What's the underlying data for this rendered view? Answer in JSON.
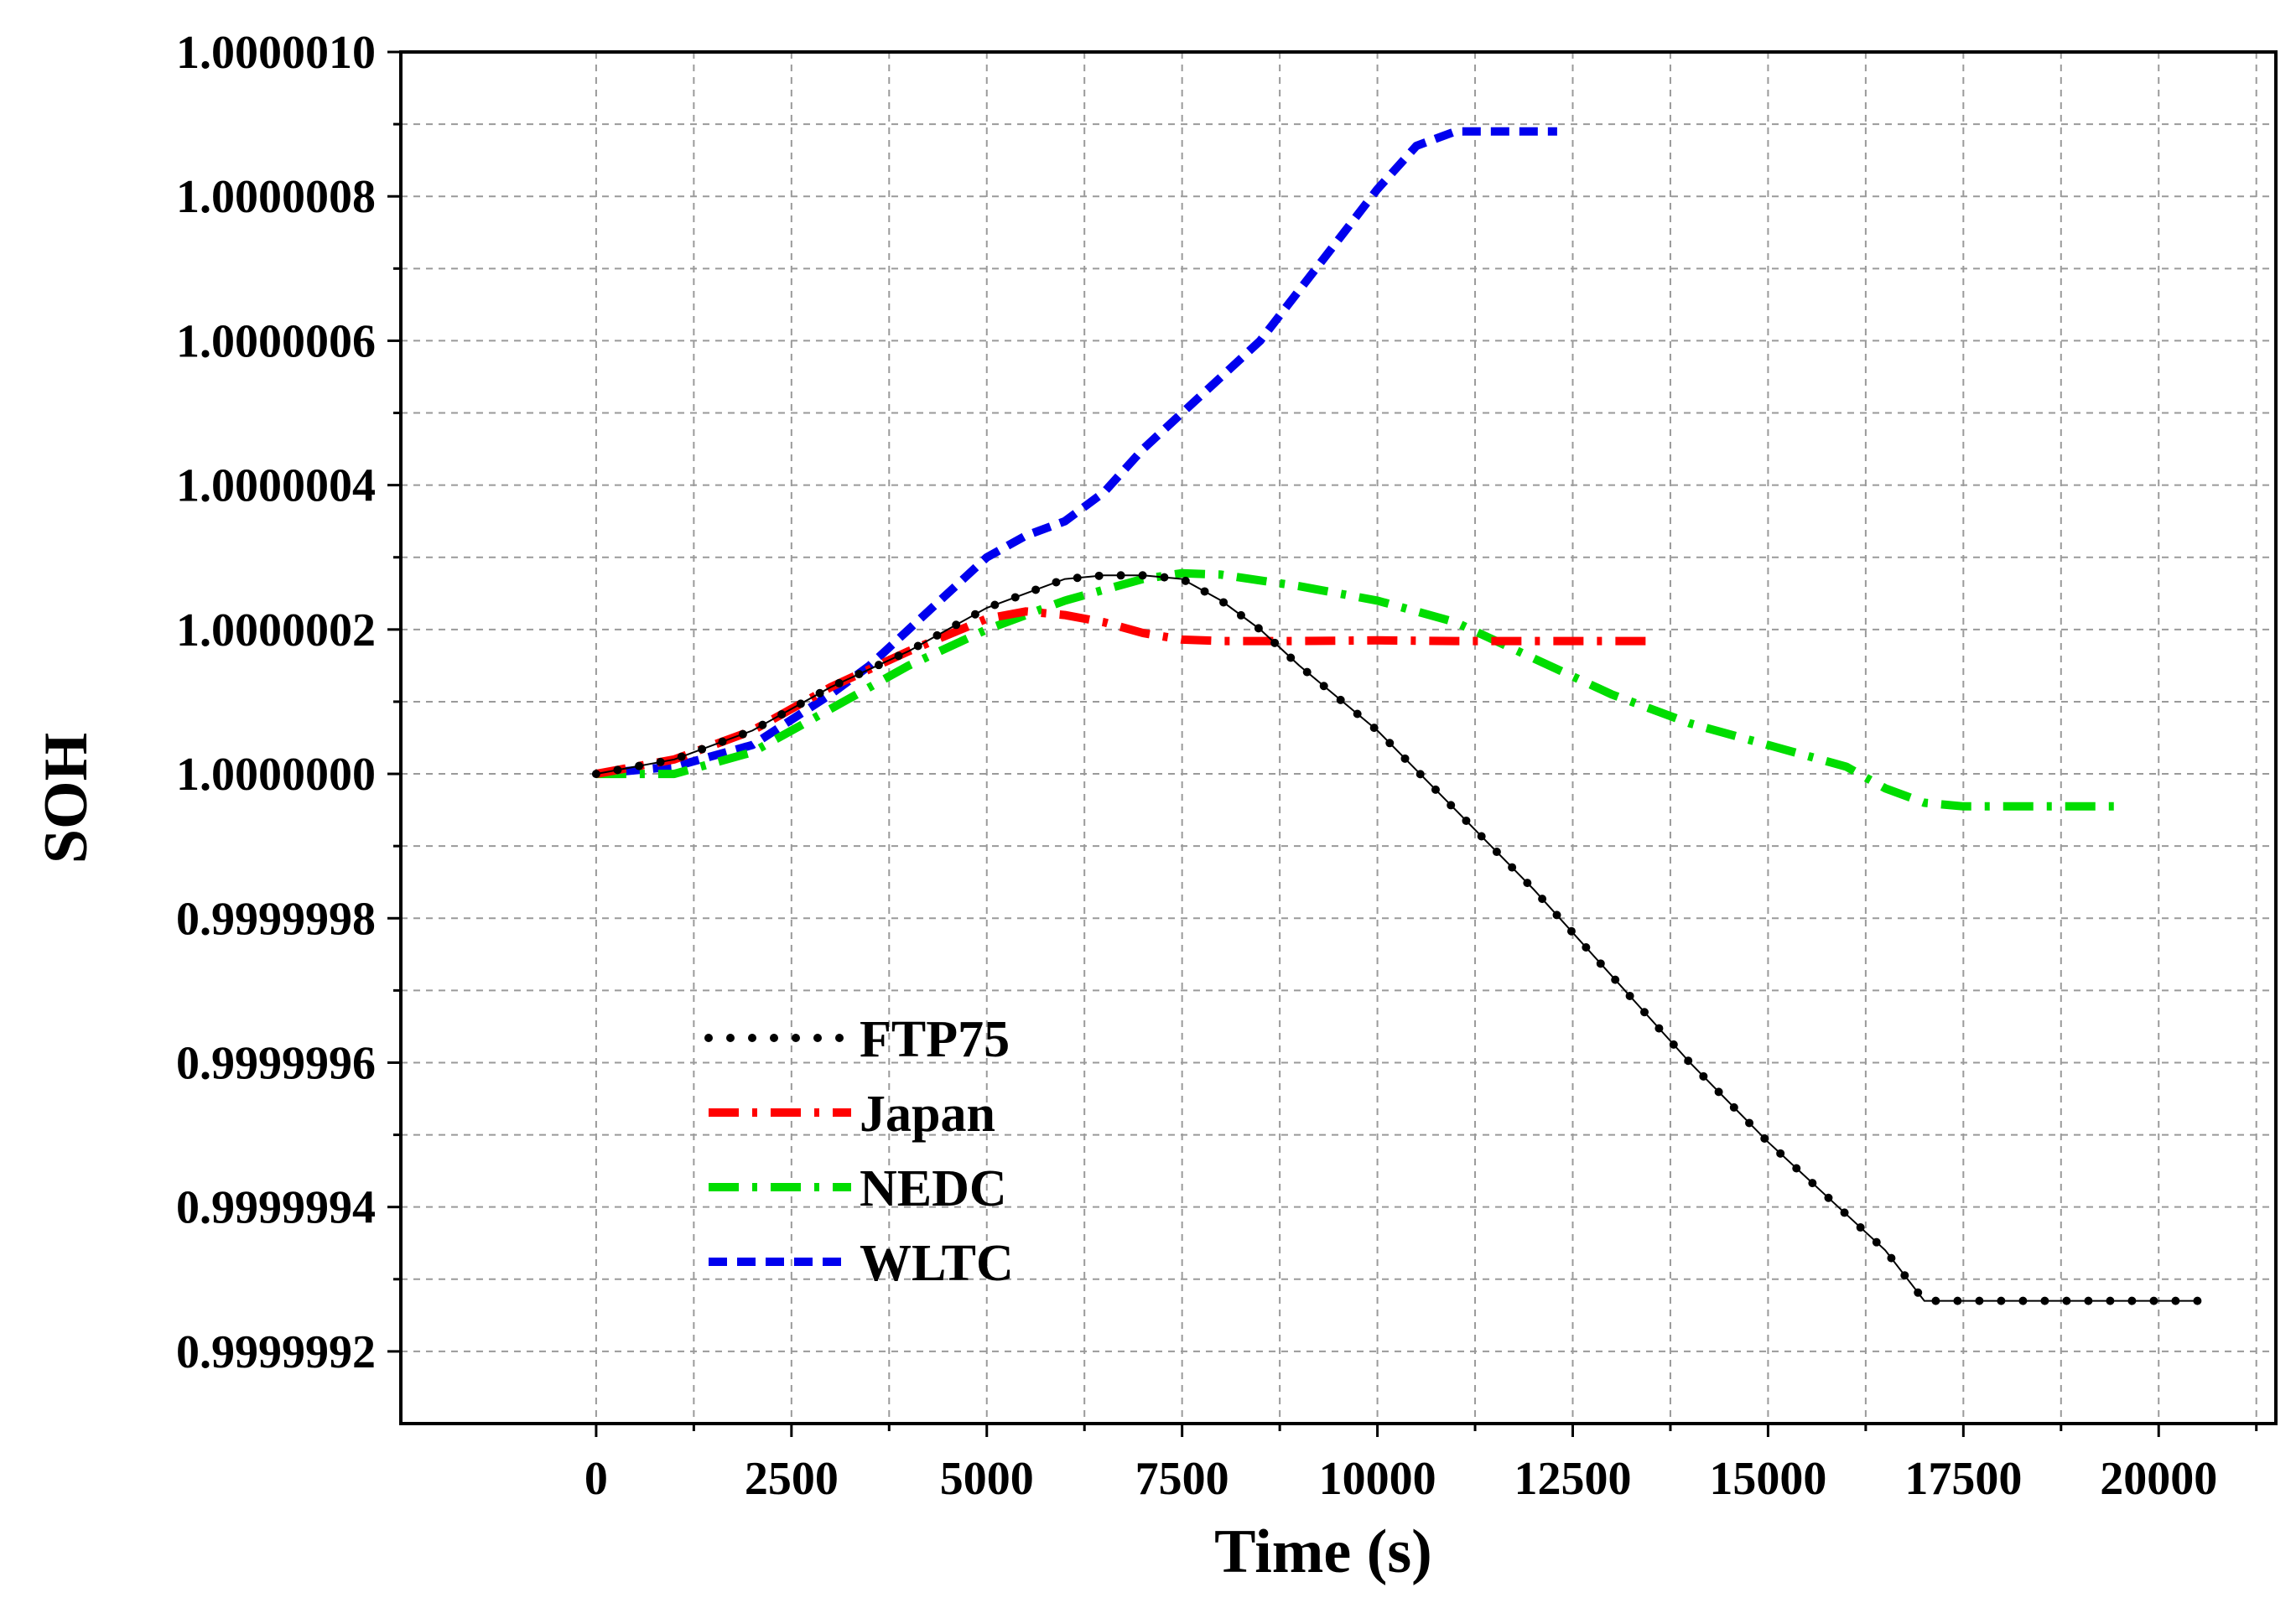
{
  "chart_data": {
    "type": "line",
    "title": "",
    "xlabel": "Time (s)",
    "ylabel": "SOH",
    "xlim": [
      -2500,
      21500
    ],
    "ylim": [
      0.9999991,
      1.000001
    ],
    "x_ticks": [
      0,
      2500,
      5000,
      7500,
      10000,
      12500,
      15000,
      17500,
      20000
    ],
    "x_tick_labels": [
      "0",
      "2500",
      "5000",
      "7500",
      "10000",
      "12500",
      "15000",
      "17500",
      "20000"
    ],
    "y_ticks": [
      0.9999992,
      0.9999994,
      0.9999996,
      0.9999998,
      1.0,
      1.0000002,
      1.0000004,
      1.0000006,
      1.0000008,
      1.000001
    ],
    "y_tick_labels": [
      "0.9999992",
      "0.9999994",
      "0.9999996",
      "0.9999998",
      "1.0000000",
      "1.0000002",
      "1.0000004",
      "1.0000006",
      "1.0000008",
      "1.0000010"
    ],
    "grid": true,
    "legend_position": "lower-left",
    "series": [
      {
        "name": "FTP75",
        "color": "#000000",
        "style": "dotted",
        "x": [
          0,
          1000,
          2000,
          3000,
          4000,
          5000,
          5500,
          6000,
          6500,
          7000,
          7500,
          8000,
          8500,
          9000,
          10000,
          11000,
          12000,
          13000,
          14000,
          15000,
          16000,
          16500,
          17000,
          17500,
          18500,
          19500,
          20500
        ],
        "y": [
          1.0,
          1.00000002,
          1.00000006,
          1.00000012,
          1.00000017,
          1.00000023,
          1.00000025,
          1.00000027,
          1.000000275,
          1.000000275,
          1.00000027,
          1.00000024,
          1.0000002,
          1.00000015,
          1.00000006,
          0.99999995,
          0.99999984,
          0.99999972,
          0.9999996,
          0.99999949,
          0.99999939,
          0.99999934,
          0.99999927,
          0.99999927,
          0.99999927,
          0.99999927,
          0.99999927
        ]
      },
      {
        "name": "Japan",
        "color": "#ff0000",
        "style": "dash-dot",
        "x": [
          0,
          1000,
          2000,
          3000,
          4000,
          5000,
          5500,
          6000,
          6500,
          7000,
          7500,
          8000,
          9000,
          10000,
          11000,
          12000,
          13000,
          13500
        ],
        "y": [
          1.0,
          1.00000002,
          1.00000006,
          1.00000012,
          1.00000017,
          1.000000215,
          1.000000225,
          1.00000022,
          1.00000021,
          1.000000195,
          1.000000186,
          1.000000184,
          1.000000184,
          1.000000185,
          1.000000184,
          1.000000184,
          1.000000184,
          1.000000184
        ]
      },
      {
        "name": "NEDC",
        "color": "#00dd00",
        "style": "dash-dot",
        "x": [
          0,
          1000,
          2000,
          3000,
          4000,
          5000,
          6000,
          7000,
          7500,
          8000,
          9000,
          10000,
          11000,
          12000,
          13000,
          14000,
          15000,
          16000,
          16500,
          17000,
          17500,
          18500,
          19500
        ],
        "y": [
          1.0,
          1.0,
          1.00000003,
          1.00000009,
          1.00000015,
          1.0000002,
          1.00000024,
          1.00000027,
          1.000000278,
          1.000000276,
          1.00000026,
          1.00000024,
          1.00000021,
          1.00000016,
          1.00000011,
          1.00000007,
          1.00000004,
          1.00000001,
          0.99999998,
          0.99999996,
          0.999999955,
          0.999999955,
          0.999999955
        ]
      },
      {
        "name": "WLTC",
        "color": "#0000ee",
        "style": "dashed",
        "x": [
          0,
          1000,
          2000,
          3000,
          3500,
          4000,
          5000,
          5500,
          6000,
          6500,
          7000,
          7500,
          8000,
          8500,
          9000,
          9500,
          10000,
          10500,
          11000,
          12300
        ],
        "y": [
          1.0,
          1.00000001,
          1.00000004,
          1.00000011,
          1.00000015,
          1.0000002,
          1.0000003,
          1.00000033,
          1.00000035,
          1.00000039,
          1.00000045,
          1.0000005,
          1.00000055,
          1.0000006,
          1.00000067,
          1.00000074,
          1.00000081,
          1.00000087,
          1.00000089,
          1.00000089
        ]
      }
    ]
  }
}
